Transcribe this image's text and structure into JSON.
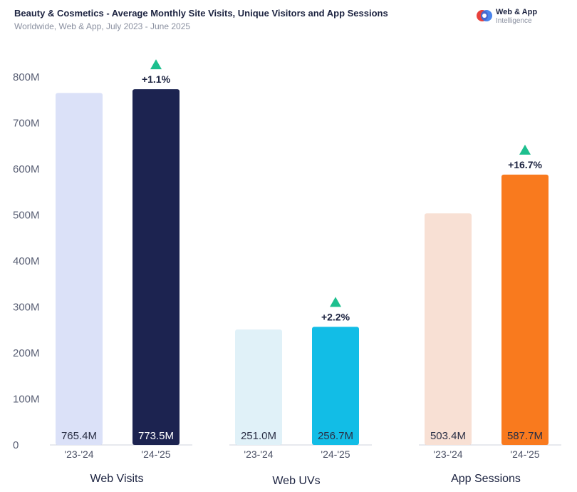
{
  "header": {
    "title": "Beauty & Cosmetics - Average Monthly Site Visits, Unique Visitors and App Sessions",
    "subtitle": "Worldwide, Web & App, July 2023 - June 2025"
  },
  "brand": {
    "line1": "Web & App",
    "line2": "Intelligence",
    "colors": [
      "#e8413c",
      "#2a6ee8"
    ]
  },
  "chart_data": {
    "type": "bar",
    "y_ticks": [
      "0",
      "100M",
      "200M",
      "300M",
      "400M",
      "500M",
      "600M",
      "700M",
      "800M"
    ],
    "ylim": [
      0,
      800
    ],
    "grid": false,
    "groups": [
      {
        "name": "Web Visits",
        "bars": [
          {
            "period": "'23-'24",
            "value": 765.4,
            "label": "765.4M",
            "color": "#dbe1f8",
            "label_color": "#2a2f45"
          },
          {
            "period": "'24-'25",
            "value": 773.5,
            "label": "773.5M",
            "color": "#1c2350",
            "label_color": "#ffffff"
          }
        ],
        "change": "+1.1%"
      },
      {
        "name": "Web UVs",
        "bars": [
          {
            "period": "'23-'24",
            "value": 251.0,
            "label": "251.0M",
            "color": "#e0f1f8",
            "label_color": "#2a2f45"
          },
          {
            "period": "'24-'25",
            "value": 256.7,
            "label": "256.7M",
            "color": "#12bde6",
            "label_color": "#2a2f45"
          }
        ],
        "change": "+2.2%"
      },
      {
        "name": "App Sessions",
        "bars": [
          {
            "period": "'23-'24",
            "value": 503.4,
            "label": "503.4M",
            "color": "#f8e0d4",
            "label_color": "#2a2f45"
          },
          {
            "period": "'24-'25",
            "value": 587.7,
            "label": "587.7M",
            "color": "#f97a1e",
            "label_color": "#2a2f45"
          }
        ],
        "change": "+16.7%"
      }
    ],
    "up_arrow_color": "#1dbf8e"
  }
}
